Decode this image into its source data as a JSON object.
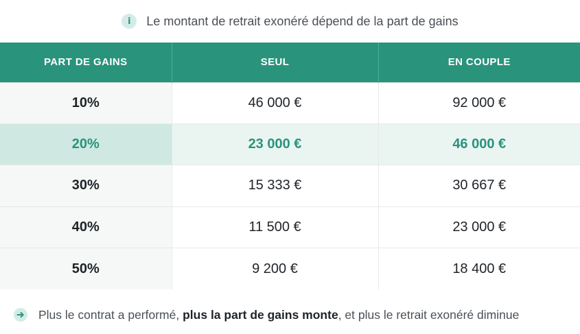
{
  "info": {
    "icon": "info-icon",
    "icon_glyph": "i",
    "text": "Le montant de retrait exonéré dépend de la part de gains"
  },
  "table": {
    "headers": [
      "PART DE GAINS",
      "SEUL",
      "EN COUPLE"
    ],
    "rows": [
      {
        "part": "10%",
        "seul": "46 000 €",
        "couple": "92 000 €"
      },
      {
        "part": "20%",
        "seul": "23 000 €",
        "couple": "46 000 €",
        "highlighted": true
      },
      {
        "part": "30%",
        "seul": "15 333 €",
        "couple": "30 667 €"
      },
      {
        "part": "40%",
        "seul": "11 500 €",
        "couple": "23 000 €"
      },
      {
        "part": "50%",
        "seul": "9 200 €",
        "couple": "18 400 €"
      }
    ]
  },
  "footer": {
    "icon": "arrow-right-icon",
    "text_before": "Plus le contrat a performé, ",
    "text_bold": "plus la part de gains monte",
    "text_after": ", et plus le retrait exonéré diminue"
  },
  "colors": {
    "header_bg": "#2a937c",
    "accent": "#2a937c",
    "highlight_row_bg": "#eaf5f2"
  }
}
